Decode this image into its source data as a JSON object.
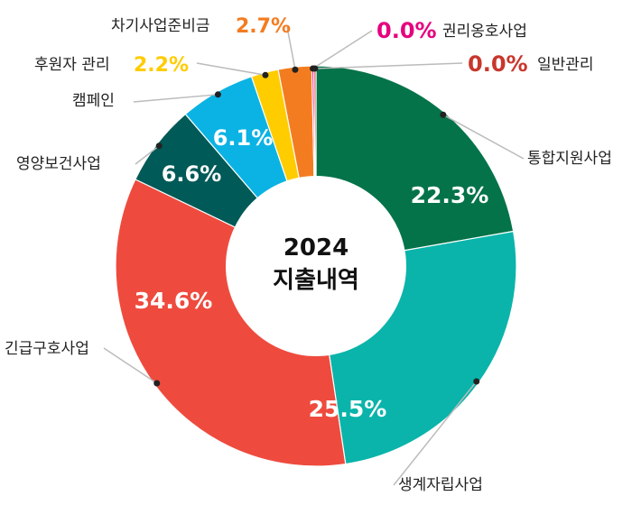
{
  "chart_data": {
    "type": "pie",
    "title_year": "2024",
    "title_text": "지출내역",
    "slices": [
      {
        "name": "통합지원사업",
        "value": 22.3,
        "label": "22.3%",
        "color": "#047349"
      },
      {
        "name": "생계자립사업",
        "value": 25.5,
        "label": "25.5%",
        "color": "#0AB4AA"
      },
      {
        "name": "긴급구호사업",
        "value": 34.6,
        "label": "34.6%",
        "color": "#EE4B3E"
      },
      {
        "name": "영양보건사업",
        "value": 6.6,
        "label": "6.6%",
        "color": "#005A57"
      },
      {
        "name": "캠페인",
        "value": 6.1,
        "label": "6.1%",
        "color": "#0BB3E4"
      },
      {
        "name": "후원자 관리",
        "value": 2.2,
        "label": "2.2%",
        "color": "#FFCC00"
      },
      {
        "name": "차기사업준비금",
        "value": 2.7,
        "label": "2.7%",
        "color": "#F47C20"
      },
      {
        "name": "권리옹호사업",
        "value": 0.0,
        "label": "0.0%",
        "color": "#E6007E"
      },
      {
        "name": "일반관리",
        "value": 0.0,
        "label": "0.0%",
        "color": "#C8372D"
      }
    ]
  }
}
